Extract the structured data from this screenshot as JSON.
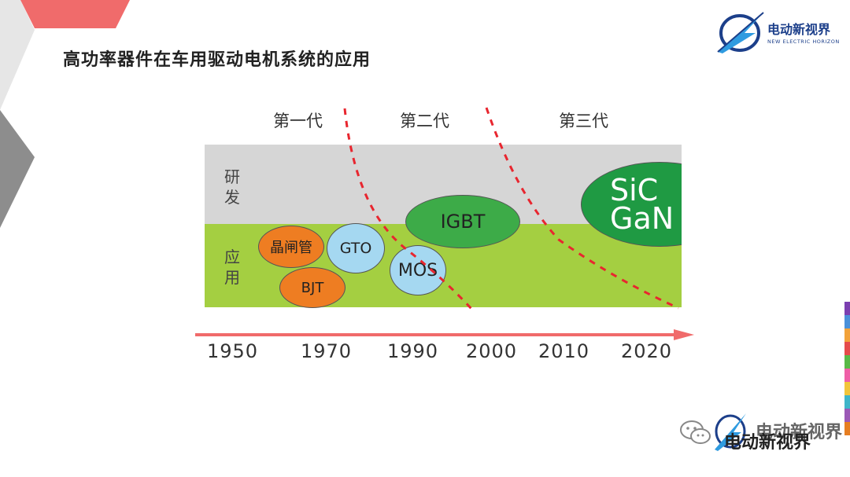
{
  "slide": {
    "title": "高功率器件在车用驱动电机系统的应用"
  },
  "brand": {
    "name": "电动新视界",
    "subtitle": "NEW ELECTRIC HORIZON"
  },
  "generations": [
    "第一代",
    "第二代",
    "第三代"
  ],
  "bands": {
    "rd": "研发",
    "application": "应用"
  },
  "devices": {
    "thyristor": "晶闸管",
    "bjt": "BJT",
    "gto": "GTO",
    "mos": "MOS",
    "igbt": "IGBT",
    "sic": "SiC",
    "gan": "GaN"
  },
  "years": [
    "1950",
    "1970",
    "1990",
    "2000",
    "2010",
    "2020"
  ],
  "watermark": {
    "text1": "电动新视界",
    "text2": "电动新视界"
  },
  "colors": {
    "arrow": "#f06b6b",
    "divider": "#e8262f",
    "rd_band": "#d6d6d6",
    "app_band": "#a4cf41",
    "orange": "#ee7d22",
    "light_blue": "#a5d8f1",
    "green": "#3dab48",
    "dark_green": "#1f9a43"
  }
}
